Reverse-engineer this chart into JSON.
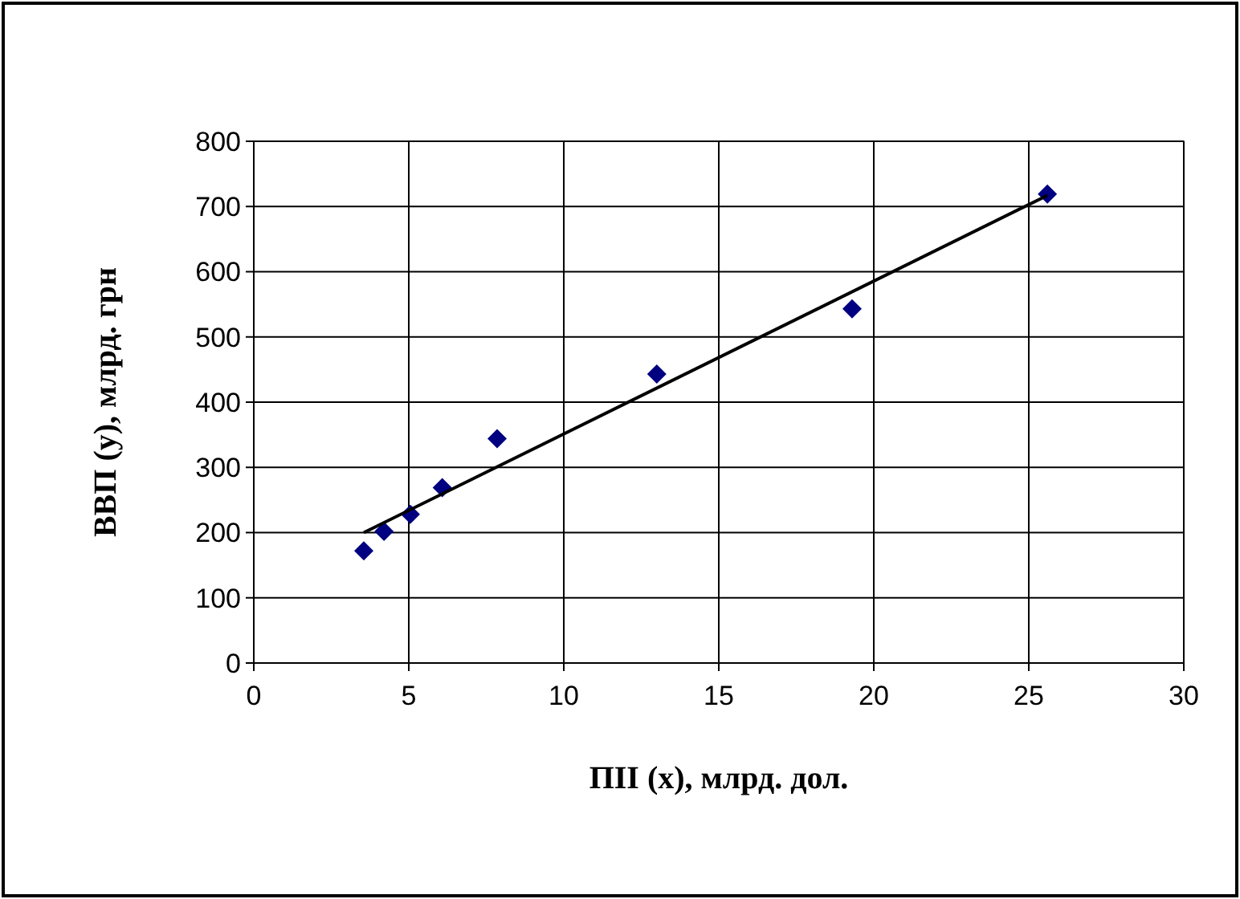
{
  "chart_data": {
    "type": "scatter",
    "xlabel": "ПІІ (х), млрд. дол.",
    "ylabel": "ВВП (у), млрд. грн",
    "xlim": [
      0,
      30
    ],
    "xticks": [
      0,
      5,
      10,
      15,
      20,
      25,
      30
    ],
    "ylim": [
      0,
      800
    ],
    "yticks": [
      0,
      100,
      200,
      300,
      400,
      500,
      600,
      700,
      800
    ],
    "grid": true,
    "marker": "diamond",
    "series": [
      {
        "color": "#000080",
        "x": [
          3.55,
          4.2,
          5.05,
          6.08,
          7.85,
          13.0,
          19.3,
          25.6
        ],
        "values": [
          172,
          202,
          228,
          269,
          344,
          443,
          543,
          719
        ]
      },
      {
        "type": "line",
        "color": "#000000",
        "marker": "none",
        "line_style": "solid",
        "x": [
          3.55,
          25.6
        ],
        "values": [
          200,
          717
        ]
      }
    ]
  }
}
